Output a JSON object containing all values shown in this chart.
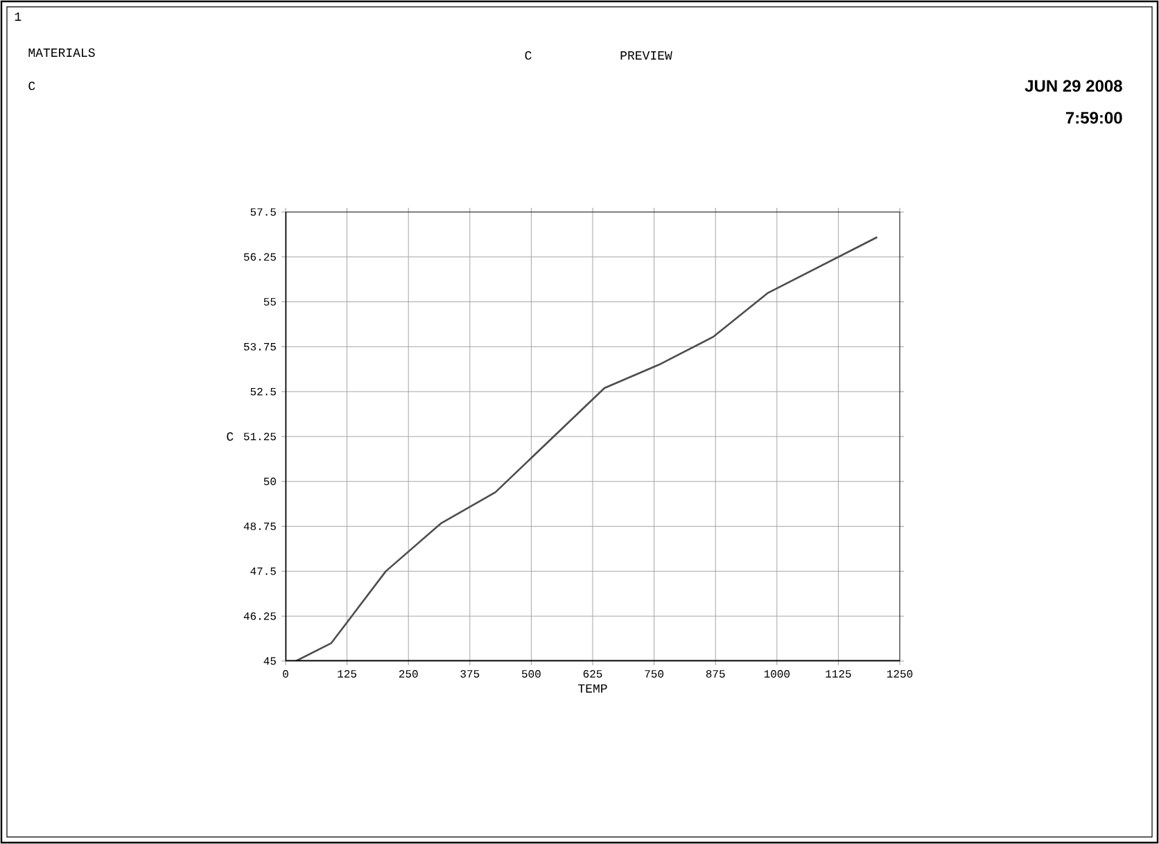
{
  "chart_data": {
    "type": "line",
    "title": "C",
    "subtitle": "PREVIEW",
    "xlabel": "TEMP",
    "ylabel": "C",
    "annotations": [
      "1",
      "MATERIALS",
      "C",
      "JUN 29 2008",
      "7:59:00"
    ],
    "x": [
      21,
      93,
      204,
      316,
      427,
      649,
      760,
      871,
      982,
      1204
    ],
    "values": [
      45,
      45.5,
      47.5,
      48.83,
      49.7,
      52.6,
      53.25,
      54.03,
      55.25,
      56.8
    ],
    "color": "#4d4d4d",
    "xlim": [
      0,
      1250
    ],
    "ylim": [
      45,
      57.5
    ],
    "xticks": [
      0,
      125,
      250,
      375,
      500,
      625,
      750,
      875,
      1000,
      1125,
      1250
    ],
    "yticks": [
      45,
      46.25,
      47.5,
      48.75,
      50,
      51.25,
      52.5,
      53.75,
      55,
      56.25,
      57.5
    ],
    "grid": true
  }
}
